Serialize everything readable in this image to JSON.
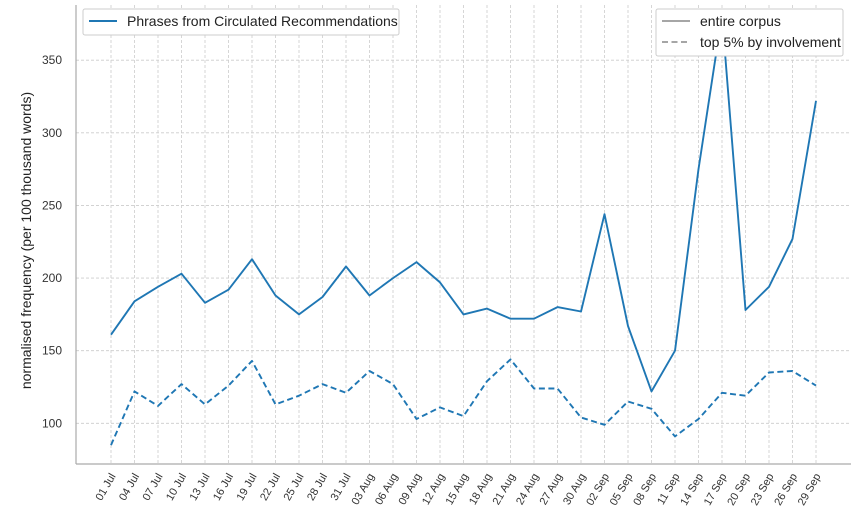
{
  "chart_data": {
    "type": "line",
    "title": "",
    "xlabel": "",
    "ylabel": "normalised frequency (per 100 thousand words)",
    "ylim": [
      72,
      388
    ],
    "yticks": [
      100,
      150,
      200,
      250,
      300,
      350
    ],
    "grid": true,
    "categories": [
      "01 Jul",
      "04 Jul",
      "07 Jul",
      "10 Jul",
      "13 Jul",
      "16 Jul",
      "19 Jul",
      "22 Jul",
      "25 Jul",
      "28 Jul",
      "31 Jul",
      "03 Aug",
      "06 Aug",
      "09 Aug",
      "12 Aug",
      "15 Aug",
      "18 Aug",
      "21 Aug",
      "24 Aug",
      "27 Aug",
      "30 Aug",
      "02 Sep",
      "05 Sep",
      "08 Sep",
      "11 Sep",
      "14 Sep",
      "17 Sep",
      "20 Sep",
      "23 Sep",
      "26 Sep",
      "29 Sep"
    ],
    "series": [
      {
        "name": "Phrases from Circulated Recommendations",
        "subset": "entire corpus",
        "style": "solid",
        "color": "#1f77b4",
        "values": [
          161,
          184,
          194,
          203,
          183,
          192,
          213,
          188,
          175,
          187,
          208,
          188,
          200,
          211,
          197,
          175,
          179,
          172,
          172,
          180,
          177,
          244,
          167,
          122,
          150,
          275,
          381,
          178,
          194,
          227,
          322
        ]
      },
      {
        "name": "Phrases from Circulated Recommendations",
        "subset": "top 5% by involvement",
        "style": "dashed",
        "color": "#1f77b4",
        "values": [
          85,
          122,
          112,
          127,
          113,
          126,
          143,
          113,
          119,
          127,
          121,
          136,
          127,
          103,
          111,
          105,
          129,
          144,
          124,
          124,
          104,
          99,
          115,
          110,
          91,
          103,
          121,
          119,
          135,
          136,
          126
        ]
      }
    ],
    "legends": {
      "color_legend": {
        "placement": "top-left",
        "entries": [
          {
            "label": "Phrases from Circulated Recommendations",
            "color": "#1f77b4",
            "style": "solid"
          }
        ]
      },
      "style_legend": {
        "placement": "top-right",
        "entries": [
          {
            "label": "entire corpus",
            "color": "#999999",
            "style": "solid"
          },
          {
            "label": "top 5% by involvement",
            "color": "#999999",
            "style": "dashed"
          }
        ]
      }
    }
  }
}
